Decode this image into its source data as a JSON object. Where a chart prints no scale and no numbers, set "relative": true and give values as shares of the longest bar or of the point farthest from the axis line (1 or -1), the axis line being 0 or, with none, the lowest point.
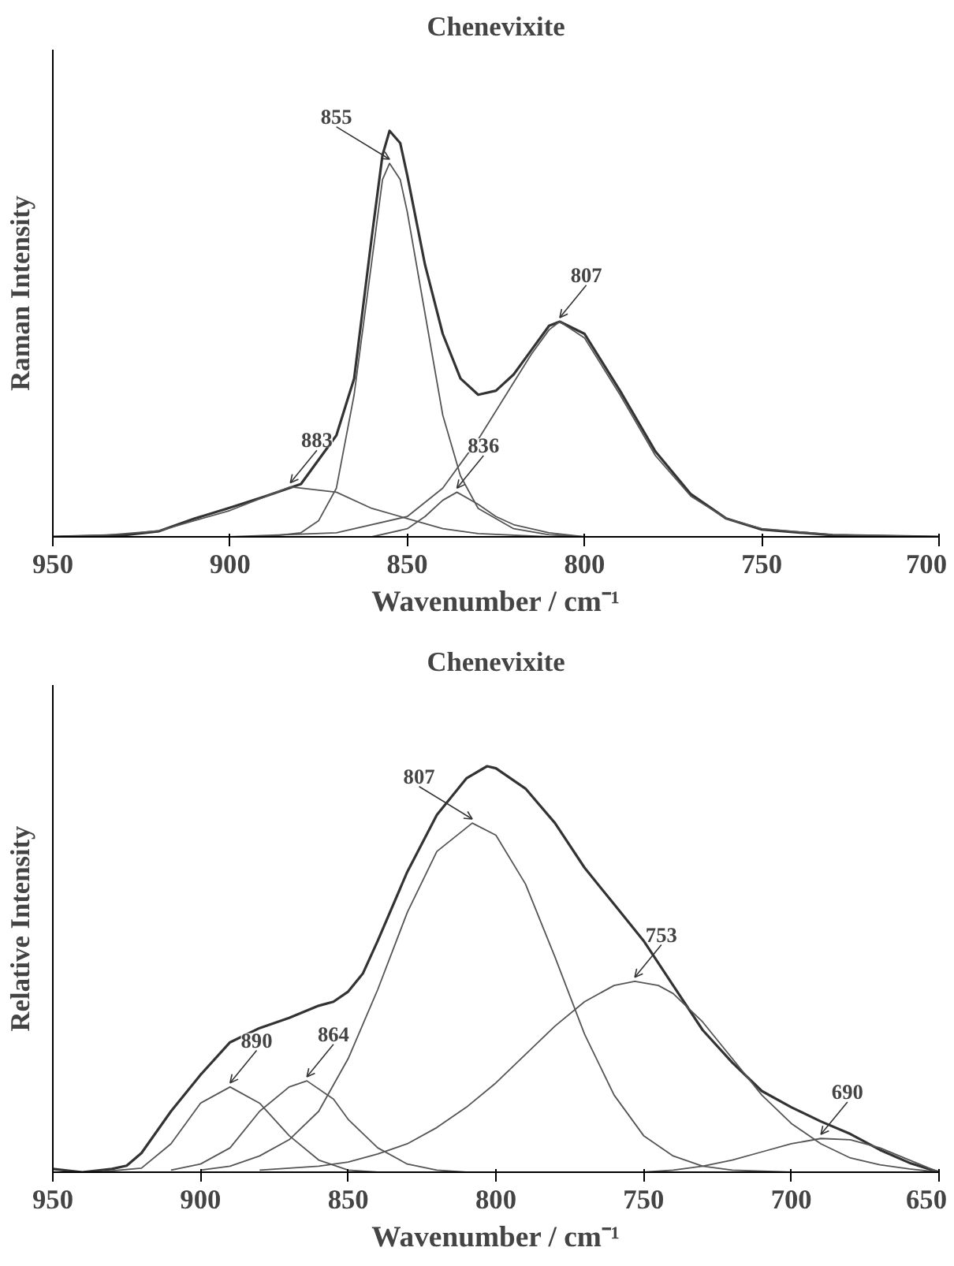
{
  "chart_data": [
    {
      "type": "line",
      "title": "Chenevixite",
      "xlabel": "Wavenumber / cm⁻¹",
      "ylabel": "Raman Intensity",
      "relative": true,
      "xlim": [
        950,
        700
      ],
      "xticks": [
        950,
        900,
        850,
        800,
        750,
        700
      ],
      "series": [
        {
          "color": "#333333",
          "x": [
            950,
            930,
            920,
            910,
            900,
            890,
            880,
            870,
            865,
            860,
            857,
            855,
            852,
            850,
            845,
            840,
            835,
            830,
            825,
            820,
            815,
            810,
            807,
            800,
            790,
            780,
            770,
            760,
            750,
            730,
            700
          ],
          "values": [
            0,
            0.004,
            0.014,
            0.045,
            0.072,
            0.1,
            0.13,
            0.25,
            0.39,
            0.74,
            0.94,
            1.0,
            0.97,
            0.89,
            0.67,
            0.5,
            0.39,
            0.35,
            0.36,
            0.4,
            0.46,
            0.52,
            0.53,
            0.5,
            0.36,
            0.21,
            0.105,
            0.045,
            0.018,
            0.004,
            0
          ]
        },
        {
          "color": "#555555",
          "x": [
            950,
            935,
            920,
            910,
            900,
            883,
            870,
            860,
            850,
            840,
            830,
            810
          ],
          "values": [
            0,
            0.004,
            0.015,
            0.04,
            0.065,
            0.123,
            0.11,
            0.07,
            0.045,
            0.02,
            0.008,
            0
          ]
        },
        {
          "color": "#555555",
          "x": [
            890,
            880,
            875,
            870,
            865,
            860,
            857,
            855,
            852,
            850,
            845,
            840,
            835,
            830,
            820,
            810,
            800
          ],
          "values": [
            0,
            0.01,
            0.04,
            0.12,
            0.35,
            0.68,
            0.88,
            0.92,
            0.88,
            0.8,
            0.55,
            0.3,
            0.15,
            0.07,
            0.02,
            0.005,
            0
          ]
        },
        {
          "color": "#555555",
          "x": [
            860,
            850,
            845,
            840,
            836,
            830,
            825,
            820,
            810,
            800
          ],
          "values": [
            0,
            0.02,
            0.05,
            0.09,
            0.11,
            0.08,
            0.05,
            0.03,
            0.01,
            0
          ]
        },
        {
          "color": "#555555",
          "x": [
            900,
            870,
            850,
            840,
            830,
            820,
            815,
            810,
            807,
            800,
            790,
            780,
            770,
            760,
            750,
            730,
            700
          ],
          "values": [
            0,
            0.01,
            0.05,
            0.12,
            0.24,
            0.38,
            0.45,
            0.51,
            0.53,
            0.49,
            0.35,
            0.2,
            0.1,
            0.045,
            0.02,
            0.005,
            0
          ]
        }
      ],
      "annotations": [
        {
          "text": "883",
          "x": 883,
          "y": 0.123
        },
        {
          "text": "855",
          "x": 855,
          "y": 0.92
        },
        {
          "text": "836",
          "x": 836,
          "y": 0.11
        },
        {
          "text": "807",
          "x": 807,
          "y": 0.53
        }
      ]
    },
    {
      "type": "line",
      "title": "Chenevixite",
      "xlabel": "Wavenumber / cm⁻¹",
      "ylabel": "Relative Intensity",
      "relative": true,
      "xlim": [
        950,
        650
      ],
      "xticks": [
        950,
        900,
        850,
        800,
        750,
        700,
        650
      ],
      "series": [
        {
          "color": "#333333",
          "x": [
            950,
            940,
            930,
            925,
            920,
            910,
            900,
            890,
            880,
            870,
            860,
            855,
            850,
            845,
            840,
            830,
            820,
            810,
            803,
            800,
            790,
            780,
            770,
            760,
            750,
            740,
            730,
            720,
            710,
            700,
            690,
            680,
            670,
            660,
            650
          ],
          "values": [
            0.008,
            0,
            0.008,
            0.016,
            0.047,
            0.15,
            0.24,
            0.32,
            0.355,
            0.38,
            0.41,
            0.42,
            0.445,
            0.49,
            0.57,
            0.74,
            0.88,
            0.97,
            1.0,
            0.995,
            0.945,
            0.86,
            0.75,
            0.66,
            0.57,
            0.46,
            0.35,
            0.27,
            0.2,
            0.16,
            0.125,
            0.094,
            0.055,
            0.023,
            0
          ]
        },
        {
          "color": "#555555",
          "x": [
            935,
            920,
            910,
            900,
            890,
            880,
            870,
            860,
            850,
            840
          ],
          "values": [
            0,
            0.01,
            0.07,
            0.17,
            0.21,
            0.17,
            0.09,
            0.03,
            0.005,
            0
          ]
        },
        {
          "color": "#555555",
          "x": [
            910,
            900,
            890,
            880,
            870,
            864,
            855,
            850,
            840,
            830,
            820,
            810
          ],
          "values": [
            0.005,
            0.02,
            0.06,
            0.15,
            0.21,
            0.225,
            0.18,
            0.13,
            0.06,
            0.02,
            0.005,
            0
          ]
        },
        {
          "color": "#555555",
          "x": [
            900,
            890,
            880,
            870,
            860,
            850,
            840,
            830,
            820,
            808,
            800,
            790,
            780,
            770,
            760,
            750,
            740,
            730,
            720,
            700
          ],
          "values": [
            0.005,
            0.015,
            0.04,
            0.08,
            0.15,
            0.28,
            0.45,
            0.64,
            0.79,
            0.86,
            0.83,
            0.71,
            0.53,
            0.34,
            0.19,
            0.09,
            0.04,
            0.015,
            0.005,
            0
          ]
        },
        {
          "color": "#555555",
          "x": [
            880,
            860,
            850,
            840,
            830,
            820,
            810,
            800,
            790,
            780,
            770,
            760,
            753,
            745,
            740,
            730,
            720,
            710,
            700,
            690,
            680,
            670,
            660,
            650
          ],
          "values": [
            0.005,
            0.015,
            0.025,
            0.045,
            0.07,
            0.11,
            0.16,
            0.22,
            0.29,
            0.36,
            0.42,
            0.46,
            0.47,
            0.46,
            0.44,
            0.37,
            0.28,
            0.19,
            0.12,
            0.07,
            0.035,
            0.018,
            0.008,
            0
          ]
        },
        {
          "color": "#555555",
          "x": [
            750,
            740,
            730,
            720,
            710,
            700,
            690,
            680,
            670,
            660,
            650
          ],
          "values": [
            0,
            0.005,
            0.015,
            0.03,
            0.05,
            0.07,
            0.083,
            0.08,
            0.06,
            0.03,
            0
          ]
        }
      ],
      "annotations": [
        {
          "text": "890",
          "x": 890,
          "y": 0.21
        },
        {
          "text": "864",
          "x": 864,
          "y": 0.225
        },
        {
          "text": "807",
          "x": 808,
          "y": 0.86
        },
        {
          "text": "753",
          "x": 753,
          "y": 0.47
        },
        {
          "text": "690",
          "x": 690,
          "y": 0.083
        }
      ]
    }
  ]
}
